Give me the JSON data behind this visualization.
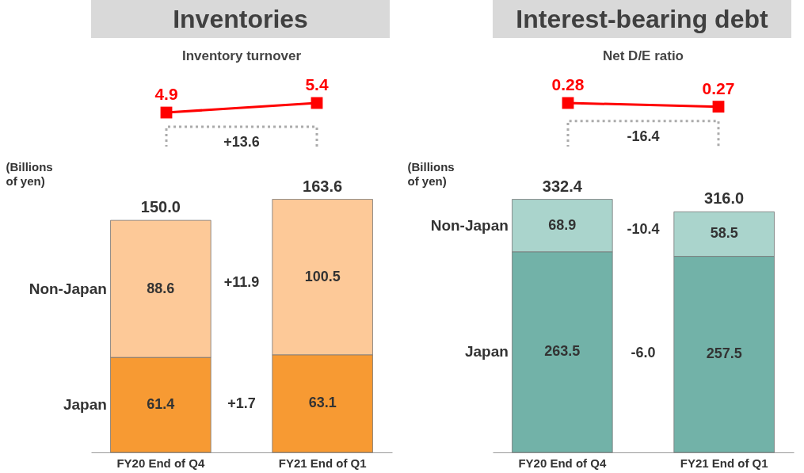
{
  "chart_data": [
    {
      "type": "line",
      "title": "Inventories",
      "subtitle": "Inventory turnover",
      "categories": [
        null,
        null
      ],
      "data_labels": true,
      "marker": "square",
      "tick_labels": false,
      "annotations": [
        "+13.6"
      ],
      "series": [
        {
          "color": "#ff0000",
          "values": [
            4.9,
            5.4
          ]
        }
      ]
    },
    {
      "type": "bar",
      "ylabel": "(Billions of yen)",
      "categories": [
        "FY20 End of Q4",
        "FY21 End of Q1"
      ],
      "stacked": true,
      "data_labels": true,
      "totals": [
        "150.0",
        "163.6"
      ],
      "tick_labels": "x",
      "annotations": [
        "+11.9",
        "+1.7"
      ],
      "series": [
        {
          "name": "Japan",
          "color": "#f79a33",
          "values": [
            61.4,
            63.1
          ]
        },
        {
          "name": "Non-Japan",
          "color": "#fdc998",
          "values": [
            88.6,
            100.5
          ]
        }
      ]
    },
    {
      "type": "line",
      "title": "Interest-bearing debt",
      "subtitle": "Net D/E ratio",
      "categories": [
        null,
        null
      ],
      "data_labels": true,
      "marker": "square",
      "tick_labels": false,
      "annotations": [
        "-16.4"
      ],
      "series": [
        {
          "color": "#ff0000",
          "values": [
            0.28,
            0.27
          ]
        }
      ]
    },
    {
      "type": "bar",
      "ylabel": "(Billions of yen)",
      "categories": [
        "FY20 End of Q4",
        "FY21 End of Q1"
      ],
      "stacked": true,
      "data_labels": true,
      "totals": [
        "332.4",
        "316.0"
      ],
      "tick_labels": "x",
      "annotations": [
        "-10.4",
        "-6.0"
      ],
      "series": [
        {
          "name": "Japan",
          "color": "#72b2a8",
          "values": [
            263.5,
            257.5
          ]
        },
        {
          "name": "Non-Japan",
          "color": "#aad4cc",
          "values": [
            68.9,
            58.5
          ]
        }
      ]
    }
  ]
}
